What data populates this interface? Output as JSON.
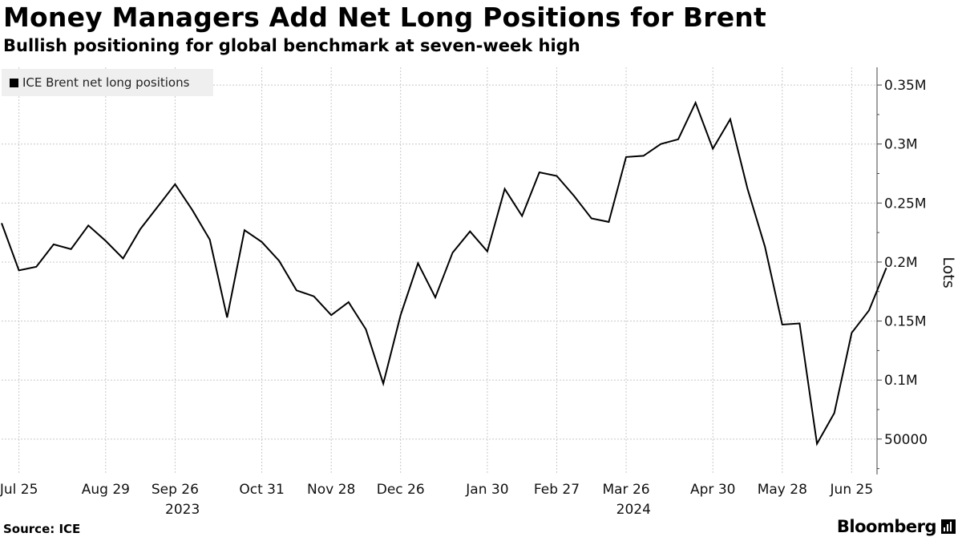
{
  "colors": {
    "line": "#000000",
    "grid": "#c8c8c8",
    "axis": "#444444",
    "legend_bg": "#efefef"
  },
  "footer": {
    "source": "Source: ICE",
    "brand": "Bloomberg",
    "brand_icon": "bloomberg-terminal-icon"
  },
  "chart_data": {
    "type": "line",
    "title": "Money Managers Add Net Long Positions for Brent",
    "subtitle": "Bullish positioning for global benchmark at seven-week high",
    "ylabel": "Lots",
    "legend": {
      "placement": "top-left",
      "entries": [
        "ICE Brent net long positions"
      ]
    },
    "grid": true,
    "y_axis_side": "right",
    "ylim": [
      20000,
      365000
    ],
    "yticks": [
      {
        "value": 50000,
        "label": "50000"
      },
      {
        "value": 100000,
        "label": "0.1M"
      },
      {
        "value": 150000,
        "label": "0.15M"
      },
      {
        "value": 200000,
        "label": "0.2M"
      },
      {
        "value": 250000,
        "label": "0.25M"
      },
      {
        "value": 300000,
        "label": "0.3M"
      },
      {
        "value": 350000,
        "label": "0.35M"
      }
    ],
    "xlim": [
      "2023-07-18",
      "2024-07-02"
    ],
    "xticks": [
      {
        "date": "2023-07-25",
        "label": "Jul 25"
      },
      {
        "date": "2023-08-29",
        "label": "Aug 29"
      },
      {
        "date": "2023-09-26",
        "label": "Sep 26"
      },
      {
        "date": "2023-10-31",
        "label": "Oct 31"
      },
      {
        "date": "2023-11-28",
        "label": "Nov 28"
      },
      {
        "date": "2023-12-26",
        "label": "Dec 26"
      },
      {
        "date": "2024-01-30",
        "label": "Jan 30"
      },
      {
        "date": "2024-02-27",
        "label": "Feb 27"
      },
      {
        "date": "2024-03-26",
        "label": "Mar 26"
      },
      {
        "date": "2024-04-30",
        "label": "Apr 30"
      },
      {
        "date": "2024-05-28",
        "label": "May 28"
      },
      {
        "date": "2024-06-25",
        "label": "Jun 25"
      }
    ],
    "year_labels": [
      {
        "date": "2023-09-29",
        "label": "2023"
      },
      {
        "date": "2024-03-29",
        "label": "2024"
      }
    ],
    "series": [
      {
        "name": "ICE Brent net long positions",
        "points": [
          [
            "2023-07-18",
            233000
          ],
          [
            "2023-07-25",
            193000
          ],
          [
            "2023-08-01",
            196000
          ],
          [
            "2023-08-08",
            215000
          ],
          [
            "2023-08-15",
            211000
          ],
          [
            "2023-08-22",
            231000
          ],
          [
            "2023-08-29",
            218000
          ],
          [
            "2023-09-05",
            203000
          ],
          [
            "2023-09-12",
            228000
          ],
          [
            "2023-09-19",
            247000
          ],
          [
            "2023-09-26",
            266000
          ],
          [
            "2023-10-03",
            244000
          ],
          [
            "2023-10-10",
            219000
          ],
          [
            "2023-10-17",
            153000
          ],
          [
            "2023-10-24",
            227000
          ],
          [
            "2023-10-31",
            217000
          ],
          [
            "2023-11-07",
            201000
          ],
          [
            "2023-11-14",
            176000
          ],
          [
            "2023-11-21",
            171000
          ],
          [
            "2023-11-28",
            155000
          ],
          [
            "2023-12-05",
            166000
          ],
          [
            "2023-12-12",
            143000
          ],
          [
            "2023-12-19",
            97000
          ],
          [
            "2023-12-26",
            155000
          ],
          [
            "2024-01-02",
            199000
          ],
          [
            "2024-01-09",
            170000
          ],
          [
            "2024-01-16",
            208000
          ],
          [
            "2024-01-23",
            226000
          ],
          [
            "2024-01-30",
            209000
          ],
          [
            "2024-02-06",
            262000
          ],
          [
            "2024-02-13",
            239000
          ],
          [
            "2024-02-20",
            276000
          ],
          [
            "2024-02-27",
            273000
          ],
          [
            "2024-03-05",
            256000
          ],
          [
            "2024-03-12",
            237000
          ],
          [
            "2024-03-19",
            234000
          ],
          [
            "2024-03-26",
            289000
          ],
          [
            "2024-04-02",
            290000
          ],
          [
            "2024-04-09",
            300000
          ],
          [
            "2024-04-16",
            304000
          ],
          [
            "2024-04-23",
            335000
          ],
          [
            "2024-04-30",
            296000
          ],
          [
            "2024-05-07",
            321000
          ],
          [
            "2024-05-14",
            262000
          ],
          [
            "2024-05-21",
            213000
          ],
          [
            "2024-05-28",
            147000
          ],
          [
            "2024-06-04",
            148000
          ],
          [
            "2024-06-11",
            46000
          ],
          [
            "2024-06-18",
            72000
          ],
          [
            "2024-06-25",
            140000
          ],
          [
            "2024-07-02",
            159000
          ],
          [
            "2024-07-09",
            195000
          ]
        ]
      }
    ]
  }
}
